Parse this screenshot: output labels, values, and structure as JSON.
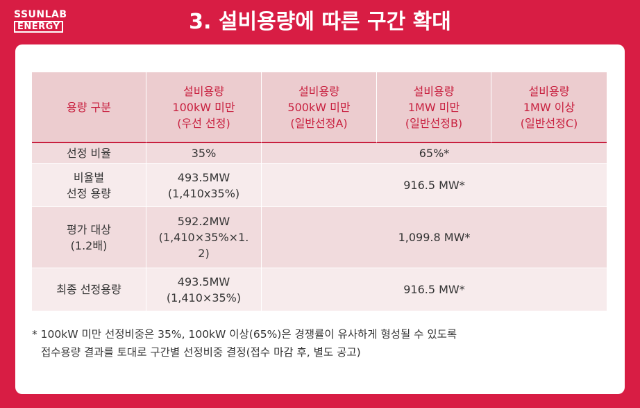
{
  "logo": {
    "line1": "SSUNLAB",
    "line2": "ENERGY"
  },
  "title": "3. 설비용량에 따른 구간 확대",
  "table": {
    "headers": [
      {
        "lines": [
          "용량 구분"
        ]
      },
      {
        "lines": [
          "설비용량",
          "100kW 미만",
          "(우선 선정)"
        ]
      },
      {
        "lines": [
          "설비용량",
          "500kW 미만",
          "(일반선정A)"
        ]
      },
      {
        "lines": [
          "설비용량",
          "1MW 미만",
          "(일반선정B)"
        ]
      },
      {
        "lines": [
          "설비용량",
          "1MW 이상",
          "(일반선정C)"
        ]
      }
    ],
    "rows": [
      {
        "label": [
          "선정 비율"
        ],
        "first": [
          "35%"
        ],
        "rest": "65%*"
      },
      {
        "label": [
          "비율별",
          "선정 용량"
        ],
        "first": [
          "493.5MW",
          "(1,410x35%)"
        ],
        "rest": "916.5 MW*"
      },
      {
        "label": [
          "평가 대상",
          "(1.2배)"
        ],
        "first": [
          "592.2MW",
          "(1,410×35%×1.",
          "2)"
        ],
        "rest": "1,099.8 MW*"
      },
      {
        "label": [
          "최종 선정용량"
        ],
        "first": [
          "493.5MW",
          "(1,410×35%)"
        ],
        "rest": "916.5 MW*"
      }
    ]
  },
  "footnote": {
    "line1": "* 100kW 미만 선정비중은 35%, 100kW 이상(65%)은 경쟁률이 유사하게 형성될 수 있도록",
    "line2": "접수용량 결과를 토대로 구간별 선정비중 결정(접수 마감 후, 별도 공고)"
  }
}
